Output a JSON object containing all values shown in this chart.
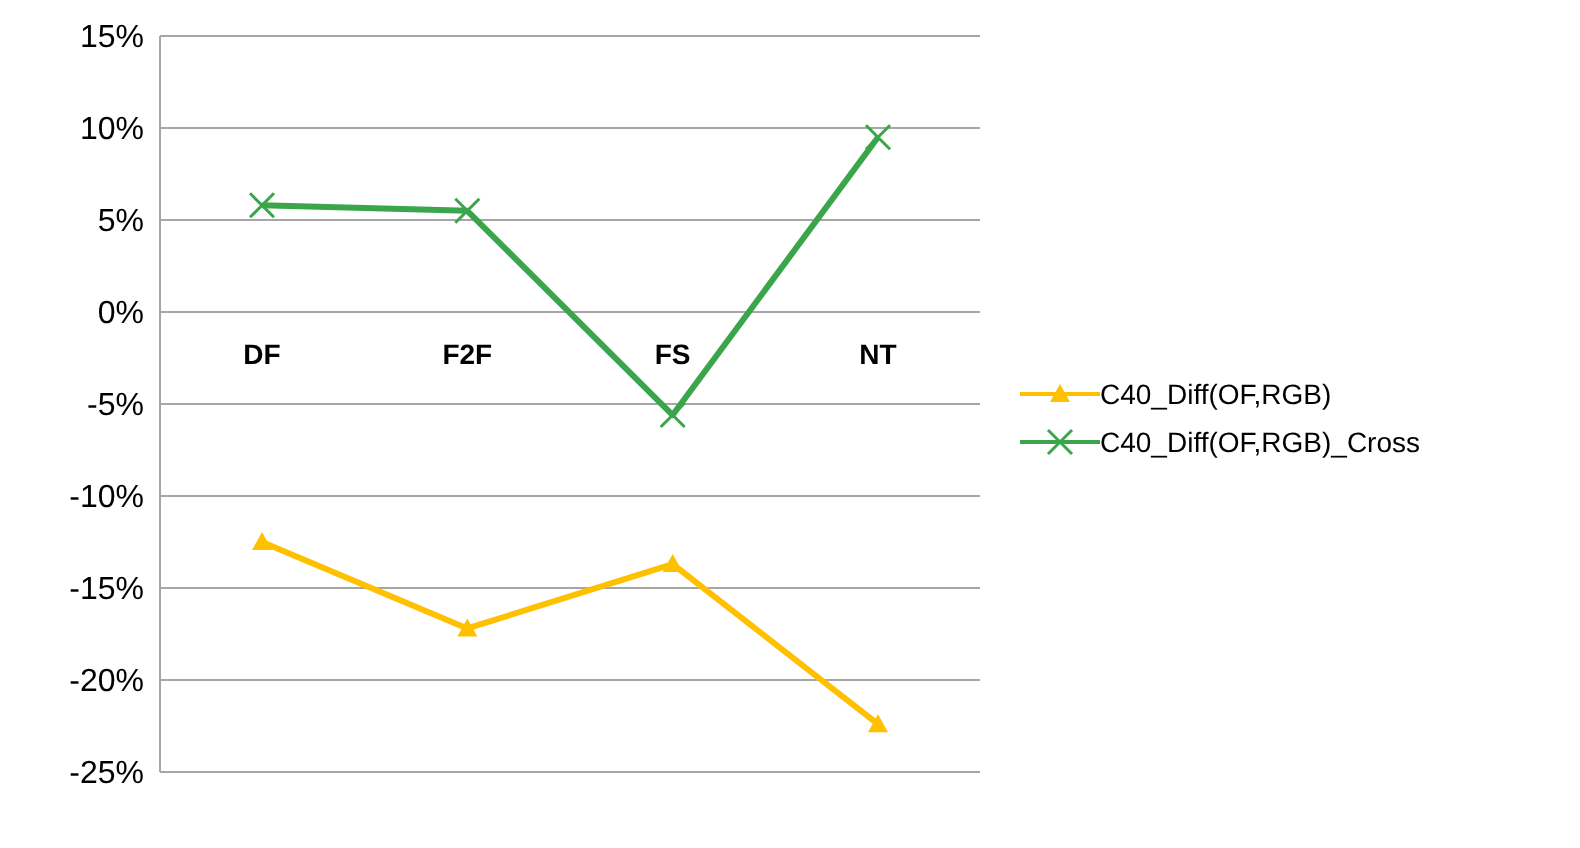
{
  "chart_data": {
    "type": "line",
    "categories": [
      "DF",
      "F2F",
      "FS",
      "NT"
    ],
    "series": [
      {
        "name": "C40_Diff(OF,RGB)",
        "color": "#ffc000",
        "marker": "triangle",
        "values": [
          -12.5,
          -17.2,
          -13.7,
          -22.4
        ]
      },
      {
        "name": "C40_Diff(OF,RGB)_Cross",
        "color": "#3aa54a",
        "marker": "cross",
        "values": [
          5.8,
          5.5,
          -5.6,
          9.5
        ]
      }
    ],
    "ylim": [
      -25,
      15
    ],
    "yticks": [
      {
        "value": -25,
        "label": "-25%"
      },
      {
        "value": -20,
        "label": "-20%"
      },
      {
        "value": -15,
        "label": "-15%"
      },
      {
        "value": -10,
        "label": "-10%"
      },
      {
        "value": -5,
        "label": "-5%"
      },
      {
        "value": 0,
        "label": "0%"
      },
      {
        "value": 5,
        "label": "5%"
      },
      {
        "value": 10,
        "label": "10%"
      },
      {
        "value": 15,
        "label": "15%"
      }
    ],
    "grid": "y",
    "legend": "right",
    "line_style": "solid"
  }
}
